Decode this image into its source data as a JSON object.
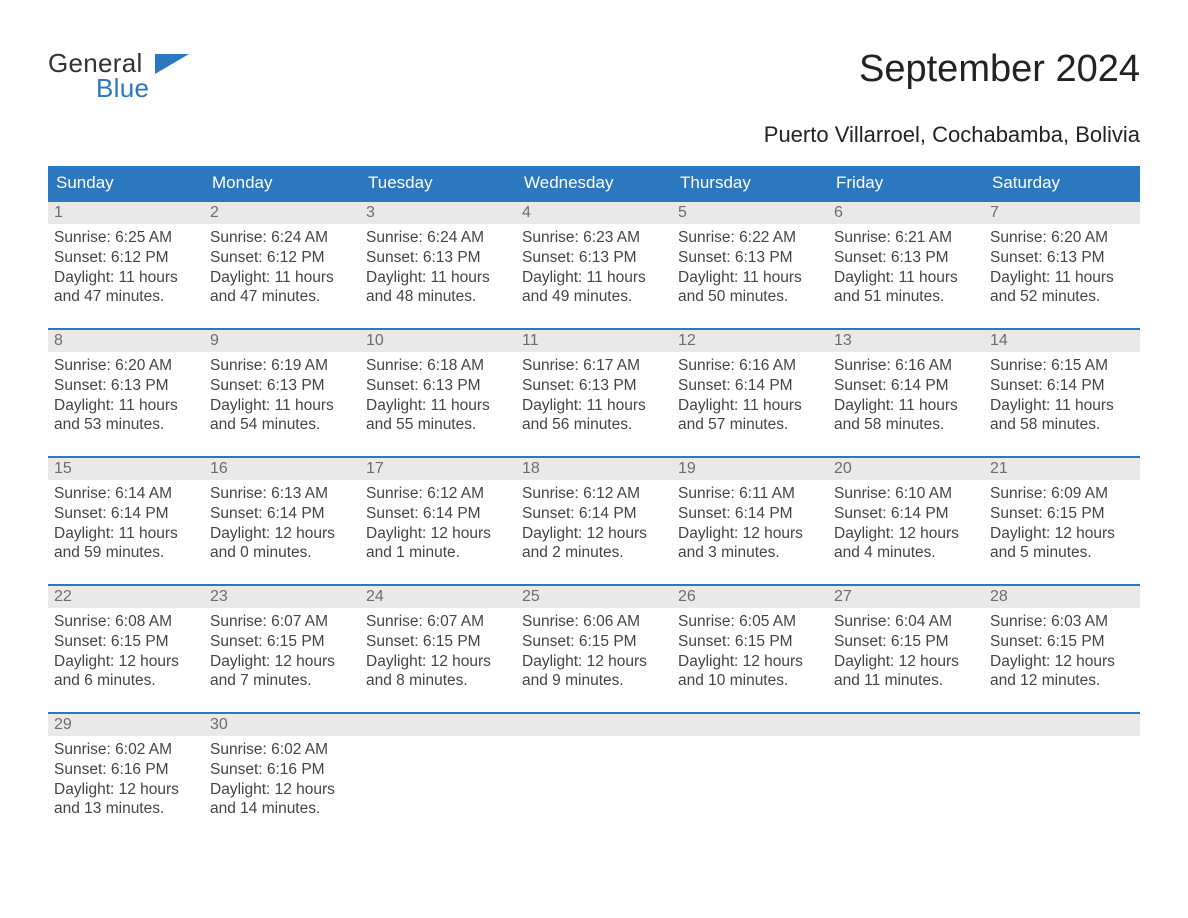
{
  "logo": {
    "top": "General",
    "bottom": "Blue",
    "icon_color": "#2b77c0"
  },
  "title": "September 2024",
  "subtitle": "Puerto Villarroel, Cochabamba, Bolivia",
  "colors": {
    "header_bg": "#2b77c0",
    "header_text": "#ffffff",
    "week_border": "#2b77c0",
    "daynum_bg": "#e9e9e9",
    "daynum_text": "#6d6d6d",
    "body_text": "#444444",
    "background": "#ffffff"
  },
  "calendar": {
    "day_names": [
      "Sunday",
      "Monday",
      "Tuesday",
      "Wednesday",
      "Thursday",
      "Friday",
      "Saturday"
    ],
    "weeks": [
      [
        {
          "n": 1,
          "sr": "6:25 AM",
          "ss": "6:12 PM",
          "dl": "11 hours and 47 minutes."
        },
        {
          "n": 2,
          "sr": "6:24 AM",
          "ss": "6:12 PM",
          "dl": "11 hours and 47 minutes."
        },
        {
          "n": 3,
          "sr": "6:24 AM",
          "ss": "6:13 PM",
          "dl": "11 hours and 48 minutes."
        },
        {
          "n": 4,
          "sr": "6:23 AM",
          "ss": "6:13 PM",
          "dl": "11 hours and 49 minutes."
        },
        {
          "n": 5,
          "sr": "6:22 AM",
          "ss": "6:13 PM",
          "dl": "11 hours and 50 minutes."
        },
        {
          "n": 6,
          "sr": "6:21 AM",
          "ss": "6:13 PM",
          "dl": "11 hours and 51 minutes."
        },
        {
          "n": 7,
          "sr": "6:20 AM",
          "ss": "6:13 PM",
          "dl": "11 hours and 52 minutes."
        }
      ],
      [
        {
          "n": 8,
          "sr": "6:20 AM",
          "ss": "6:13 PM",
          "dl": "11 hours and 53 minutes."
        },
        {
          "n": 9,
          "sr": "6:19 AM",
          "ss": "6:13 PM",
          "dl": "11 hours and 54 minutes."
        },
        {
          "n": 10,
          "sr": "6:18 AM",
          "ss": "6:13 PM",
          "dl": "11 hours and 55 minutes."
        },
        {
          "n": 11,
          "sr": "6:17 AM",
          "ss": "6:13 PM",
          "dl": "11 hours and 56 minutes."
        },
        {
          "n": 12,
          "sr": "6:16 AM",
          "ss": "6:14 PM",
          "dl": "11 hours and 57 minutes."
        },
        {
          "n": 13,
          "sr": "6:16 AM",
          "ss": "6:14 PM",
          "dl": "11 hours and 58 minutes."
        },
        {
          "n": 14,
          "sr": "6:15 AM",
          "ss": "6:14 PM",
          "dl": "11 hours and 58 minutes."
        }
      ],
      [
        {
          "n": 15,
          "sr": "6:14 AM",
          "ss": "6:14 PM",
          "dl": "11 hours and 59 minutes."
        },
        {
          "n": 16,
          "sr": "6:13 AM",
          "ss": "6:14 PM",
          "dl": "12 hours and 0 minutes."
        },
        {
          "n": 17,
          "sr": "6:12 AM",
          "ss": "6:14 PM",
          "dl": "12 hours and 1 minute."
        },
        {
          "n": 18,
          "sr": "6:12 AM",
          "ss": "6:14 PM",
          "dl": "12 hours and 2 minutes."
        },
        {
          "n": 19,
          "sr": "6:11 AM",
          "ss": "6:14 PM",
          "dl": "12 hours and 3 minutes."
        },
        {
          "n": 20,
          "sr": "6:10 AM",
          "ss": "6:14 PM",
          "dl": "12 hours and 4 minutes."
        },
        {
          "n": 21,
          "sr": "6:09 AM",
          "ss": "6:15 PM",
          "dl": "12 hours and 5 minutes."
        }
      ],
      [
        {
          "n": 22,
          "sr": "6:08 AM",
          "ss": "6:15 PM",
          "dl": "12 hours and 6 minutes."
        },
        {
          "n": 23,
          "sr": "6:07 AM",
          "ss": "6:15 PM",
          "dl": "12 hours and 7 minutes."
        },
        {
          "n": 24,
          "sr": "6:07 AM",
          "ss": "6:15 PM",
          "dl": "12 hours and 8 minutes."
        },
        {
          "n": 25,
          "sr": "6:06 AM",
          "ss": "6:15 PM",
          "dl": "12 hours and 9 minutes."
        },
        {
          "n": 26,
          "sr": "6:05 AM",
          "ss": "6:15 PM",
          "dl": "12 hours and 10 minutes."
        },
        {
          "n": 27,
          "sr": "6:04 AM",
          "ss": "6:15 PM",
          "dl": "12 hours and 11 minutes."
        },
        {
          "n": 28,
          "sr": "6:03 AM",
          "ss": "6:15 PM",
          "dl": "12 hours and 12 minutes."
        }
      ],
      [
        {
          "n": 29,
          "sr": "6:02 AM",
          "ss": "6:16 PM",
          "dl": "12 hours and 13 minutes."
        },
        {
          "n": 30,
          "sr": "6:02 AM",
          "ss": "6:16 PM",
          "dl": "12 hours and 14 minutes."
        },
        null,
        null,
        null,
        null,
        null
      ]
    ],
    "labels": {
      "sunrise_prefix": "Sunrise: ",
      "sunset_prefix": "Sunset: ",
      "daylight_prefix": "Daylight: "
    }
  }
}
